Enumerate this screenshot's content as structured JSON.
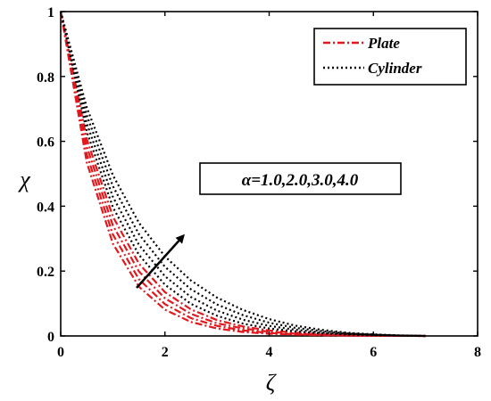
{
  "chart_data": {
    "type": "line",
    "xlabel": "ζ",
    "ylabel": "χ",
    "xlim": [
      0,
      8
    ],
    "ylim": [
      0,
      1
    ],
    "xticks": [
      "0",
      "2",
      "4",
      "6",
      "8"
    ],
    "yticks": [
      "0",
      "0.2",
      "0.4",
      "0.6",
      "0.8",
      "1"
    ],
    "grid": false,
    "legend_position": "top-right",
    "legend": [
      {
        "label": "Plate",
        "color": "#e0191e",
        "style": "dash-dot"
      },
      {
        "label": "Cylinder",
        "color": "#000000",
        "style": "dotted"
      }
    ],
    "annotation": "α=1.0,2.0,3.0,4.0",
    "x": [
      0,
      0.5,
      1,
      1.5,
      2,
      2.5,
      3,
      3.5,
      4,
      4.5,
      5,
      5.5,
      6,
      6.5,
      7
    ],
    "series": [
      {
        "group": "Plate",
        "alpha": 1.0,
        "values": [
          1.0,
          0.535,
          0.285,
          0.152,
          0.081,
          0.043,
          0.023,
          0.012,
          0.007,
          0.004,
          0.002,
          0.001,
          0.0005,
          0.0002,
          0.0
        ]
      },
      {
        "group": "Plate",
        "alpha": 2.0,
        "values": [
          1.0,
          0.56,
          0.313,
          0.175,
          0.098,
          0.055,
          0.031,
          0.017,
          0.009,
          0.005,
          0.003,
          0.0015,
          0.0008,
          0.0003,
          0.0
        ]
      },
      {
        "group": "Plate",
        "alpha": 3.0,
        "values": [
          1.0,
          0.584,
          0.341,
          0.199,
          0.116,
          0.068,
          0.039,
          0.023,
          0.013,
          0.007,
          0.004,
          0.002,
          0.001,
          0.0004,
          0.0
        ]
      },
      {
        "group": "Plate",
        "alpha": 4.0,
        "values": [
          1.0,
          0.607,
          0.368,
          0.223,
          0.135,
          0.082,
          0.049,
          0.029,
          0.017,
          0.01,
          0.005,
          0.003,
          0.0015,
          0.0006,
          0.0
        ]
      },
      {
        "group": "Cylinder",
        "alpha": 1.0,
        "values": [
          1.0,
          0.63,
          0.397,
          0.25,
          0.158,
          0.099,
          0.062,
          0.038,
          0.023,
          0.014,
          0.008,
          0.004,
          0.002,
          0.001,
          0.0
        ]
      },
      {
        "group": "Cylinder",
        "alpha": 2.0,
        "values": [
          1.0,
          0.655,
          0.429,
          0.281,
          0.184,
          0.12,
          0.078,
          0.05,
          0.031,
          0.019,
          0.011,
          0.006,
          0.003,
          0.0012,
          0.0
        ]
      },
      {
        "group": "Cylinder",
        "alpha": 3.0,
        "values": [
          1.0,
          0.68,
          0.462,
          0.314,
          0.213,
          0.144,
          0.097,
          0.064,
          0.041,
          0.025,
          0.015,
          0.008,
          0.004,
          0.0015,
          0.0
        ]
      },
      {
        "group": "Cylinder",
        "alpha": 4.0,
        "values": [
          1.0,
          0.704,
          0.496,
          0.349,
          0.245,
          0.171,
          0.118,
          0.08,
          0.052,
          0.032,
          0.019,
          0.01,
          0.005,
          0.002,
          0.0
        ]
      }
    ]
  }
}
